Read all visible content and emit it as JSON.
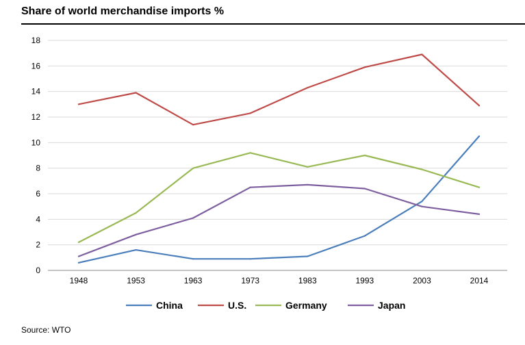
{
  "header": {
    "title": "Share of world merchandise imports %"
  },
  "footer": {
    "source": "Source:  WTO"
  },
  "chart_data": {
    "type": "line",
    "title": "Share of world merchandise imports %",
    "xlabel": "",
    "ylabel": "",
    "categories": [
      "1948",
      "1953",
      "1963",
      "1973",
      "1983",
      "1993",
      "2003",
      "2014"
    ],
    "ylim": [
      0,
      18
    ],
    "yticks": [
      0,
      2,
      4,
      6,
      8,
      10,
      12,
      14,
      16,
      18
    ],
    "grid": true,
    "legend_position": "bottom",
    "series": [
      {
        "name": "China",
        "color": "#4a7ebb",
        "values": [
          0.6,
          1.6,
          0.9,
          0.9,
          1.1,
          2.7,
          5.4,
          10.5
        ]
      },
      {
        "name": "U.S.",
        "color": "#be4b48",
        "values": [
          13.0,
          13.9,
          11.4,
          12.3,
          14.3,
          15.9,
          16.9,
          12.9
        ]
      },
      {
        "name": "Germany",
        "color": "#98b954",
        "values": [
          2.2,
          4.5,
          8.0,
          9.2,
          8.1,
          9.0,
          7.9,
          6.5
        ]
      },
      {
        "name": "Japan",
        "color": "#7d5fa0",
        "values": [
          1.1,
          2.8,
          4.1,
          6.5,
          6.7,
          6.4,
          5.0,
          4.4
        ]
      }
    ]
  }
}
